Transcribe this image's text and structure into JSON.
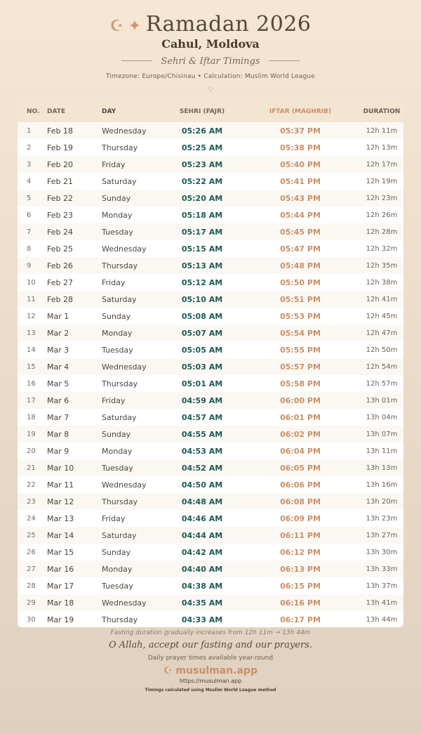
{
  "header": {
    "icon_moon": "☪",
    "icon_star": "✦",
    "title": "Ramadan 2026",
    "city": "Cahul, Moldova",
    "subtitle": "Sehri & Iftar Timings",
    "info": "Timezone: Europe/Chisinau • Calculation: Muslim World League",
    "ornament": "◇"
  },
  "colors": {
    "sehri": "#1e5b52",
    "iftar": "#c99067",
    "accent": "#c99a6e"
  },
  "table": {
    "headers": [
      "NO.",
      "DATE",
      "DAY",
      "SEHRI (FAJR)",
      "IFTAR (MAGHRIB)",
      "DURATION"
    ],
    "rows": [
      [
        "1",
        "Feb 18",
        "Wednesday",
        "05:26 AM",
        "05:37 PM",
        "12h 11m"
      ],
      [
        "2",
        "Feb 19",
        "Thursday",
        "05:25 AM",
        "05:38 PM",
        "12h 13m"
      ],
      [
        "3",
        "Feb 20",
        "Friday",
        "05:23 AM",
        "05:40 PM",
        "12h 17m"
      ],
      [
        "4",
        "Feb 21",
        "Saturday",
        "05:22 AM",
        "05:41 PM",
        "12h 19m"
      ],
      [
        "5",
        "Feb 22",
        "Sunday",
        "05:20 AM",
        "05:43 PM",
        "12h 23m"
      ],
      [
        "6",
        "Feb 23",
        "Monday",
        "05:18 AM",
        "05:44 PM",
        "12h 26m"
      ],
      [
        "7",
        "Feb 24",
        "Tuesday",
        "05:17 AM",
        "05:45 PM",
        "12h 28m"
      ],
      [
        "8",
        "Feb 25",
        "Wednesday",
        "05:15 AM",
        "05:47 PM",
        "12h 32m"
      ],
      [
        "9",
        "Feb 26",
        "Thursday",
        "05:13 AM",
        "05:48 PM",
        "12h 35m"
      ],
      [
        "10",
        "Feb 27",
        "Friday",
        "05:12 AM",
        "05:50 PM",
        "12h 38m"
      ],
      [
        "11",
        "Feb 28",
        "Saturday",
        "05:10 AM",
        "05:51 PM",
        "12h 41m"
      ],
      [
        "12",
        "Mar 1",
        "Sunday",
        "05:08 AM",
        "05:53 PM",
        "12h 45m"
      ],
      [
        "13",
        "Mar 2",
        "Monday",
        "05:07 AM",
        "05:54 PM",
        "12h 47m"
      ],
      [
        "14",
        "Mar 3",
        "Tuesday",
        "05:05 AM",
        "05:55 PM",
        "12h 50m"
      ],
      [
        "15",
        "Mar 4",
        "Wednesday",
        "05:03 AM",
        "05:57 PM",
        "12h 54m"
      ],
      [
        "16",
        "Mar 5",
        "Thursday",
        "05:01 AM",
        "05:58 PM",
        "12h 57m"
      ],
      [
        "17",
        "Mar 6",
        "Friday",
        "04:59 AM",
        "06:00 PM",
        "13h 01m"
      ],
      [
        "18",
        "Mar 7",
        "Saturday",
        "04:57 AM",
        "06:01 PM",
        "13h 04m"
      ],
      [
        "19",
        "Mar 8",
        "Sunday",
        "04:55 AM",
        "06:02 PM",
        "13h 07m"
      ],
      [
        "20",
        "Mar 9",
        "Monday",
        "04:53 AM",
        "06:04 PM",
        "13h 11m"
      ],
      [
        "21",
        "Mar 10",
        "Tuesday",
        "04:52 AM",
        "06:05 PM",
        "13h 13m"
      ],
      [
        "22",
        "Mar 11",
        "Wednesday",
        "04:50 AM",
        "06:06 PM",
        "13h 16m"
      ],
      [
        "23",
        "Mar 12",
        "Thursday",
        "04:48 AM",
        "06:08 PM",
        "13h 20m"
      ],
      [
        "24",
        "Mar 13",
        "Friday",
        "04:46 AM",
        "06:09 PM",
        "13h 23m"
      ],
      [
        "25",
        "Mar 14",
        "Saturday",
        "04:44 AM",
        "06:11 PM",
        "13h 27m"
      ],
      [
        "26",
        "Mar 15",
        "Sunday",
        "04:42 AM",
        "06:12 PM",
        "13h 30m"
      ],
      [
        "27",
        "Mar 16",
        "Monday",
        "04:40 AM",
        "06:13 PM",
        "13h 33m"
      ],
      [
        "28",
        "Mar 17",
        "Tuesday",
        "04:38 AM",
        "06:15 PM",
        "13h 37m"
      ],
      [
        "29",
        "Mar 18",
        "Wednesday",
        "04:35 AM",
        "06:16 PM",
        "13h 41m"
      ],
      [
        "30",
        "Mar 19",
        "Thursday",
        "04:33 AM",
        "06:17 PM",
        "13h 44m"
      ]
    ]
  },
  "footer": {
    "note": "Fasting duration gradually increases from 12h 11m → 13h 44m",
    "dua": "O Allah, accept our fasting and our prayers.",
    "daily": "Daily prayer times available year-round",
    "brand_icon": "☪",
    "brand": "musulman.app",
    "url": "https://musulman.app",
    "calc": "Timings calculated using Muslim World League method"
  }
}
